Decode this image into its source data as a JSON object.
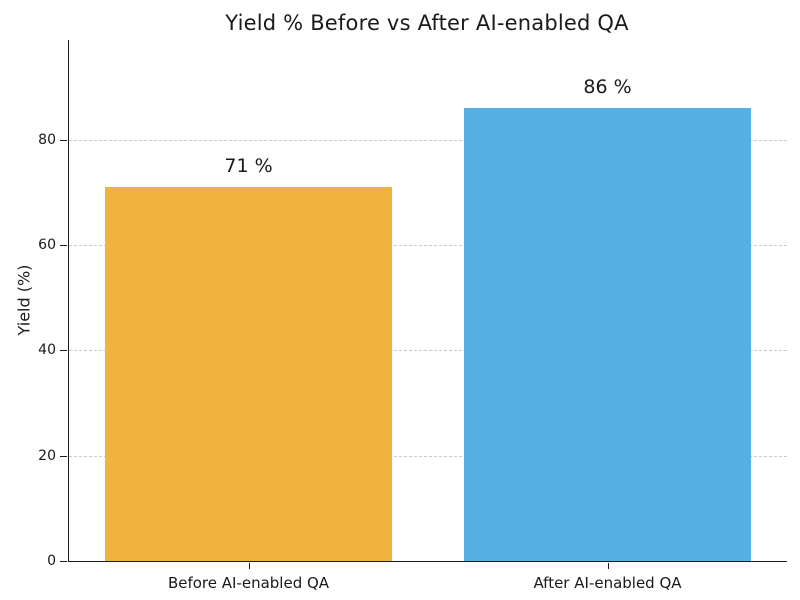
{
  "chart_data": {
    "type": "bar",
    "title": "Yield % Before vs After AI-enabled QA",
    "categories": [
      "Before AI-enabled QA",
      "After AI-enabled QA"
    ],
    "values": [
      71,
      86
    ],
    "value_labels": [
      "71 %",
      "86 %"
    ],
    "bar_colors": [
      "#F2B23E",
      "#57B0E3"
    ],
    "xlabel": "",
    "ylabel": "Yield (%)",
    "ylim": [
      0,
      98.9
    ],
    "yticks": [
      0,
      20,
      40,
      60,
      80
    ],
    "grid": "horizontal-dashed",
    "legend_position": "none",
    "bar_width_fraction": 0.8
  },
  "style": {
    "background": "#ffffff",
    "grid_color": "#c9c9c9",
    "axis_color": "#1a1a1a",
    "text_color": "#1a1a1a"
  }
}
